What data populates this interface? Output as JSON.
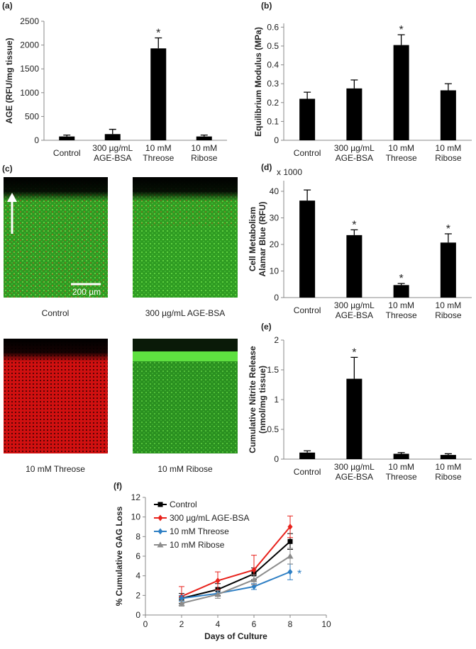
{
  "chart_data": [
    {
      "type": "bar",
      "label": "(a)",
      "ylabel": "AGE (RFU/mg tissue)",
      "categories": [
        "Control",
        "300 µg/mL\nAGE-BSA",
        "10 mM\nThreose",
        "10 mM\nRibose"
      ],
      "values": [
        80,
        130,
        1930,
        80
      ],
      "errors": [
        30,
        100,
        220,
        30
      ],
      "value_annotations": [
        null,
        null,
        "*",
        null
      ],
      "color": "#000000",
      "ylim": [
        0,
        2500
      ],
      "yticks": [
        0,
        500,
        1000,
        1500,
        2000,
        2500
      ]
    },
    {
      "type": "bar",
      "label": "(b)",
      "ylabel": "Equilibrium Modulus (MPa)",
      "categories": [
        "Control",
        "300 µg/mL\nAGE-BSA",
        "10 mM\nThreose",
        "10 mM\nRibose"
      ],
      "values": [
        0.22,
        0.275,
        0.505,
        0.265
      ],
      "errors": [
        0.035,
        0.045,
        0.055,
        0.035
      ],
      "value_annotations": [
        null,
        null,
        "*",
        null
      ],
      "color": "#000000",
      "ylim": [
        0,
        0.62
      ],
      "yticks": [
        0,
        0.1,
        0.2,
        0.3,
        0.4,
        0.5,
        0.6
      ]
    },
    {
      "type": "bar",
      "label": "(d)",
      "ylabel": "Cell Metabolism\nAlamar Blue (RFU)",
      "multiplier": "x 1000",
      "categories": [
        "Control",
        "300 µg/mL\nAGE-BSA",
        "10 mM\nThreose",
        "10 mM\nRibose"
      ],
      "values": [
        36.5,
        23.5,
        4.7,
        20.7
      ],
      "errors": [
        4,
        2,
        0.6,
        3.3
      ],
      "value_annotations": [
        null,
        "*",
        "*",
        "*"
      ],
      "color": "#000000",
      "ylim": [
        0,
        44
      ],
      "yticks": [
        0,
        10,
        20,
        30,
        40
      ]
    },
    {
      "type": "bar",
      "label": "(e)",
      "ylabel": "Cumulative Nitrite Release\n(nmol/mg tissue)",
      "categories": [
        "Control",
        "300 µg/mL\nAGE-BSA",
        "10 mM\nThreose",
        "10 mM\nRibose"
      ],
      "values": [
        0.11,
        1.35,
        0.09,
        0.07
      ],
      "errors": [
        0.03,
        0.36,
        0.02,
        0.02
      ],
      "value_annotations": [
        null,
        "*",
        null,
        null
      ],
      "color": "#000000",
      "ylim": [
        0,
        2
      ],
      "yticks": [
        0,
        0.5,
        1,
        1.5,
        2
      ]
    },
    {
      "type": "line",
      "label": "(f)",
      "xlabel": "Days of Culture",
      "ylabel": "% Cumulative GAG Loss",
      "x": [
        2,
        4,
        6,
        8
      ],
      "series": [
        {
          "name": "Control",
          "color": "#000000",
          "marker": "square",
          "values": [
            1.7,
            2.6,
            4.2,
            7.5
          ],
          "errors": [
            0.5,
            0.6,
            0.6,
            0.8
          ]
        },
        {
          "name": "300 µg/mL  AGE-BSA",
          "color": "#e8221c",
          "marker": "diamond",
          "values": [
            1.9,
            3.5,
            4.6,
            9.0
          ],
          "errors": [
            1.0,
            0.9,
            1.5,
            1.1
          ]
        },
        {
          "name": "10 mM Threose",
          "color": "#2e7fc4",
          "marker": "diamond",
          "values": [
            1.7,
            2.2,
            2.9,
            4.4
          ],
          "errors": [
            0.3,
            0.3,
            0.3,
            0.8
          ],
          "annotation": "*"
        },
        {
          "name": "10 mM Ribose",
          "color": "#8c8c8c",
          "marker": "triangle",
          "values": [
            1.2,
            2.1,
            3.6,
            6.0
          ],
          "errors": [
            0.3,
            0.4,
            0.5,
            0.8
          ]
        }
      ],
      "xlim": [
        0,
        10
      ],
      "xticks": [
        0,
        2,
        4,
        6,
        8,
        10
      ],
      "ylim": [
        0,
        12
      ],
      "yticks": [
        0,
        2,
        4,
        6,
        8,
        10,
        12
      ],
      "legend": "upper-left"
    }
  ],
  "images": {
    "label": "(c)",
    "scale_bar": "200 µm",
    "captions": [
      "Control",
      "300 µg/mL  AGE-BSA",
      "10 mM Threose",
      "10 mM Ribose"
    ]
  }
}
